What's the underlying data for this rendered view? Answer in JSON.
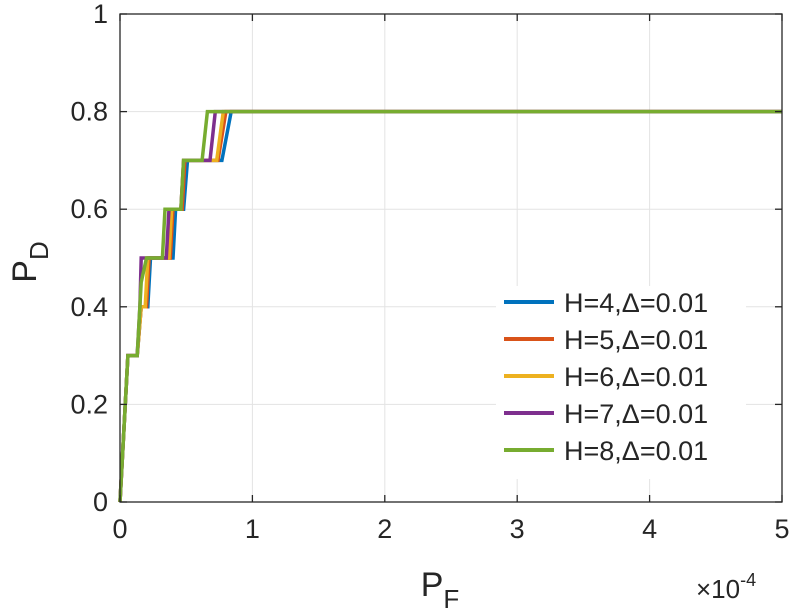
{
  "chart_data": {
    "type": "line",
    "title": "",
    "xlabel": {
      "main": "P",
      "sub": "F"
    },
    "ylabel": {
      "main": "P",
      "sub": "D"
    },
    "x_multiplier": {
      "base": "×10",
      "exp": "-4"
    },
    "xlim": [
      0,
      5
    ],
    "ylim": [
      0,
      1
    ],
    "x_ticks": [
      0,
      1,
      2,
      3,
      4,
      5
    ],
    "x_tick_labels": [
      "0",
      "1",
      "2",
      "3",
      "4",
      "5"
    ],
    "y_ticks": [
      0,
      0.2,
      0.4,
      0.6,
      0.8,
      1
    ],
    "y_tick_labels": [
      "0",
      "0.2",
      "0.4",
      "0.6",
      "0.8",
      "1"
    ],
    "grid": true,
    "legend_position": "bottom-right",
    "series": [
      {
        "name": "H=4,Δ=0.01",
        "color": "#0072BD",
        "points": [
          [
            0,
            0
          ],
          [
            0.06,
            0.3
          ],
          [
            0.13,
            0.3
          ],
          [
            0.16,
            0.4
          ],
          [
            0.21,
            0.4
          ],
          [
            0.23,
            0.5
          ],
          [
            0.4,
            0.5
          ],
          [
            0.42,
            0.6
          ],
          [
            0.48,
            0.6
          ],
          [
            0.51,
            0.7
          ],
          [
            0.77,
            0.7
          ],
          [
            0.84,
            0.8
          ],
          [
            5,
            0.8
          ]
        ]
      },
      {
        "name": "H=5,Δ=0.01",
        "color": "#D95319",
        "points": [
          [
            0,
            0
          ],
          [
            0.06,
            0.3
          ],
          [
            0.13,
            0.3
          ],
          [
            0.16,
            0.4
          ],
          [
            0.2,
            0.4
          ],
          [
            0.22,
            0.5
          ],
          [
            0.38,
            0.5
          ],
          [
            0.4,
            0.6
          ],
          [
            0.47,
            0.6
          ],
          [
            0.49,
            0.7
          ],
          [
            0.74,
            0.7
          ],
          [
            0.8,
            0.8
          ],
          [
            5,
            0.8
          ]
        ]
      },
      {
        "name": "H=6,Δ=0.01",
        "color": "#EDB120",
        "points": [
          [
            0,
            0
          ],
          [
            0.06,
            0.3
          ],
          [
            0.13,
            0.3
          ],
          [
            0.16,
            0.4
          ],
          [
            0.19,
            0.4
          ],
          [
            0.21,
            0.5
          ],
          [
            0.37,
            0.5
          ],
          [
            0.39,
            0.6
          ],
          [
            0.46,
            0.6
          ],
          [
            0.48,
            0.7
          ],
          [
            0.73,
            0.7
          ],
          [
            0.78,
            0.8
          ],
          [
            5,
            0.8
          ]
        ]
      },
      {
        "name": "H=7,Δ=0.01",
        "color": "#7E2F8E",
        "points": [
          [
            0,
            0
          ],
          [
            0.06,
            0.3
          ],
          [
            0.13,
            0.3
          ],
          [
            0.15,
            0.4
          ],
          [
            0.16,
            0.5
          ],
          [
            0.35,
            0.5
          ],
          [
            0.37,
            0.6
          ],
          [
            0.46,
            0.6
          ],
          [
            0.48,
            0.7
          ],
          [
            0.68,
            0.7
          ],
          [
            0.72,
            0.8
          ],
          [
            5,
            0.8
          ]
        ]
      },
      {
        "name": "H=8,Δ=0.01",
        "color": "#77AC30",
        "points": [
          [
            0,
            0
          ],
          [
            0.06,
            0.3
          ],
          [
            0.13,
            0.3
          ],
          [
            0.16,
            0.45
          ],
          [
            0.2,
            0.5
          ],
          [
            0.32,
            0.5
          ],
          [
            0.34,
            0.6
          ],
          [
            0.46,
            0.6
          ],
          [
            0.48,
            0.7
          ],
          [
            0.62,
            0.7
          ],
          [
            0.66,
            0.8
          ],
          [
            5,
            0.8
          ]
        ]
      }
    ]
  }
}
